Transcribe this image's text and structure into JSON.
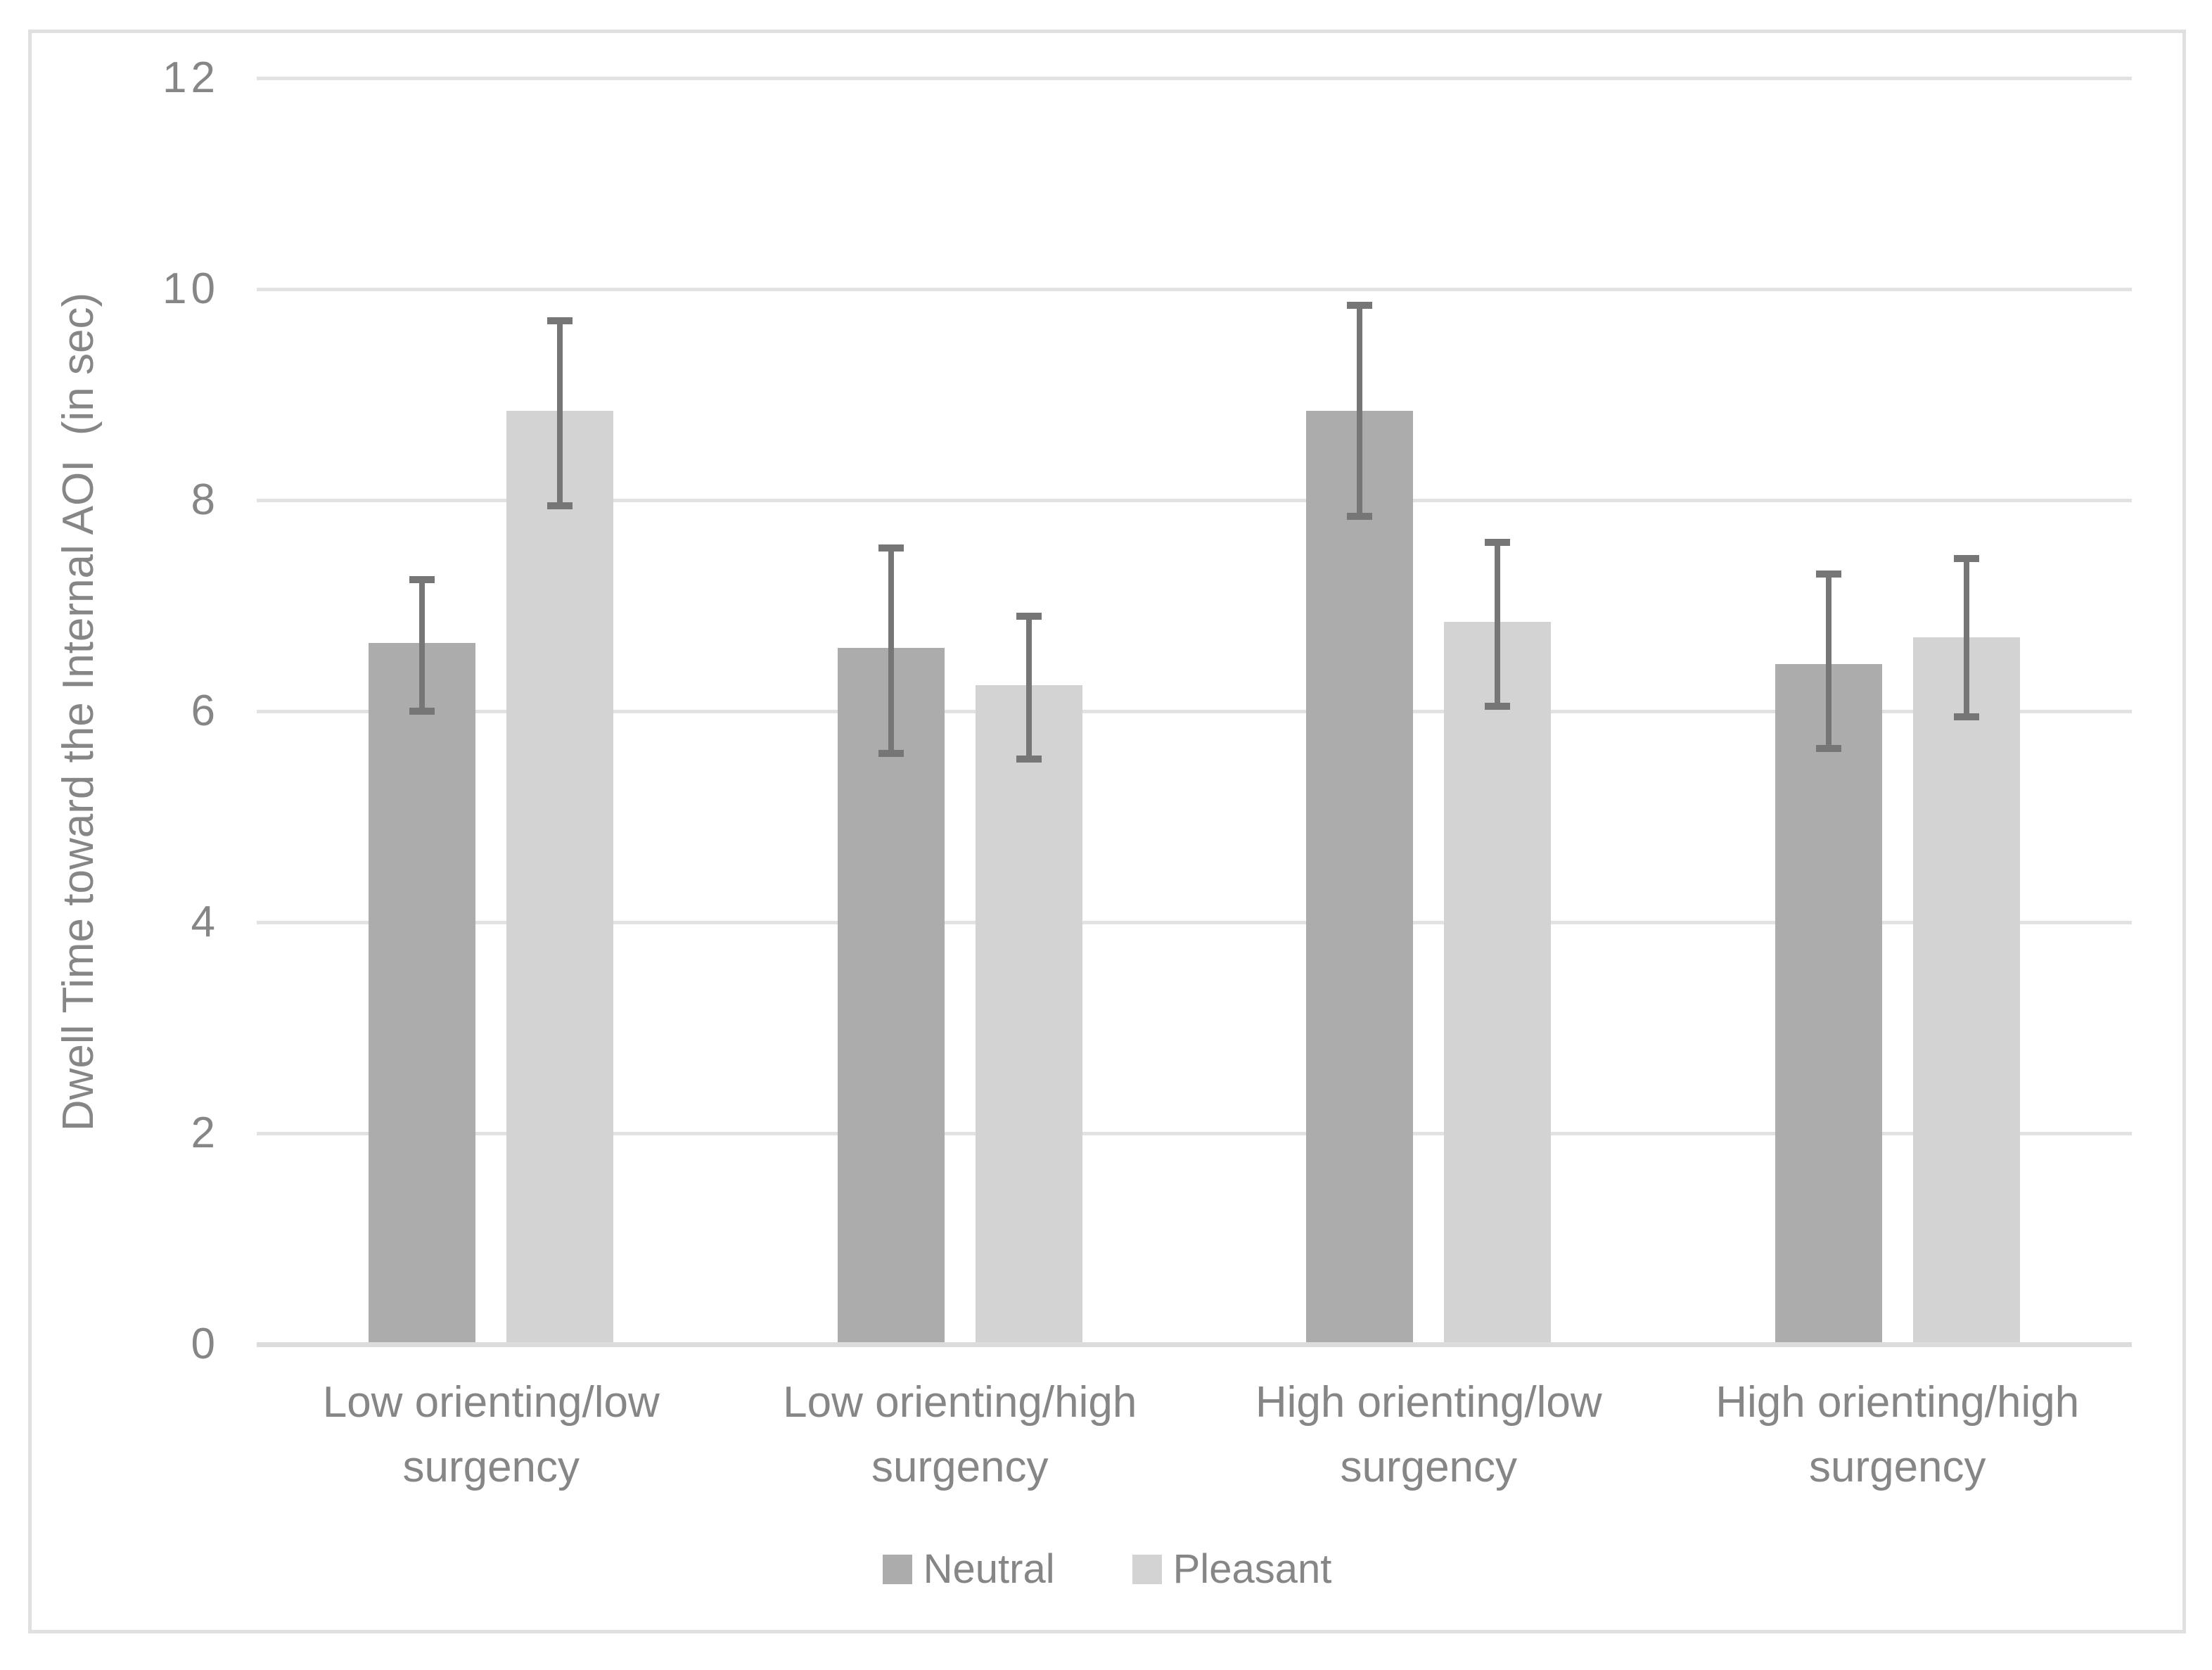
{
  "chart_data": {
    "type": "bar",
    "title": "",
    "ylabel": "Dwell Time toward the Internal AOI  (in sec)",
    "xlabel": "",
    "ylim": [
      0,
      12
    ],
    "yticks": [
      0,
      2,
      4,
      6,
      8,
      10,
      12
    ],
    "grid": true,
    "legend_position": "bottom-center",
    "categories": [
      "Low orienting/low surgency",
      "Low orienting/high surgency",
      "High orienting/low surgency",
      "High orienting/high surgency"
    ],
    "series": [
      {
        "name": "Neutral",
        "color": "#acacac",
        "values": [
          6.65,
          6.6,
          8.85,
          6.45
        ],
        "error_low": [
          6.0,
          5.6,
          7.85,
          5.65
        ],
        "error_high": [
          7.25,
          7.55,
          9.85,
          7.3
        ]
      },
      {
        "name": "Pleasant",
        "color": "#d3d3d3",
        "values": [
          8.85,
          6.25,
          6.85,
          6.7
        ],
        "error_low": [
          7.95,
          5.55,
          6.05,
          5.95
        ],
        "error_high": [
          9.7,
          6.9,
          7.6,
          7.45
        ]
      }
    ],
    "error_bar_color": "#767676",
    "axis_text_color": "#868686",
    "gridline_color": "#e2e2e2",
    "baseline_color": "#dcdcdc",
    "frame_color": "#e0e0e0",
    "background_color": "#ffffff"
  }
}
